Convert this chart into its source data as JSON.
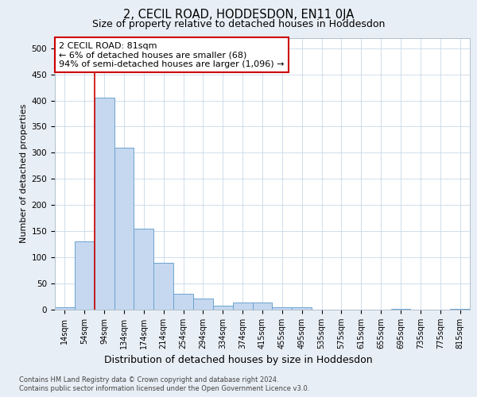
{
  "title_line1": "2, CECIL ROAD, HODDESDON, EN11 0JA",
  "title_line2": "Size of property relative to detached houses in Hoddesdon",
  "xlabel": "Distribution of detached houses by size in Hoddesdon",
  "ylabel": "Number of detached properties",
  "categories": [
    "14sqm",
    "54sqm",
    "94sqm",
    "134sqm",
    "174sqm",
    "214sqm",
    "254sqm",
    "294sqm",
    "334sqm",
    "374sqm",
    "415sqm",
    "455sqm",
    "495sqm",
    "535sqm",
    "575sqm",
    "615sqm",
    "655sqm",
    "695sqm",
    "735sqm",
    "775sqm",
    "815sqm"
  ],
  "values": [
    5,
    130,
    405,
    310,
    155,
    90,
    30,
    22,
    8,
    13,
    13,
    4,
    5,
    0,
    0,
    0,
    0,
    2,
    0,
    0,
    1
  ],
  "bar_color": "#c5d8ef",
  "bar_edge_color": "#6ba3d0",
  "vline_x_index": 2,
  "vline_color": "#cc0000",
  "annotation_text": "2 CECIL ROAD: 81sqm\n← 6% of detached houses are smaller (68)\n94% of semi-detached houses are larger (1,096) →",
  "annotation_box_color": "#ffffff",
  "annotation_box_edge_color": "#cc0000",
  "ylim": [
    0,
    520
  ],
  "yticks": [
    0,
    50,
    100,
    150,
    200,
    250,
    300,
    350,
    400,
    450,
    500
  ],
  "footer_line1": "Contains HM Land Registry data © Crown copyright and database right 2024.",
  "footer_line2": "Contains public sector information licensed under the Open Government Licence v3.0.",
  "bg_color": "#e8eef5",
  "plot_bg_color": "#ffffff",
  "grid_color": "#c8d8e8",
  "title1_fontsize": 10.5,
  "title2_fontsize": 9,
  "ylabel_fontsize": 8,
  "xlabel_fontsize": 9,
  "tick_fontsize": 7,
  "annotation_fontsize": 8,
  "footer_fontsize": 6
}
